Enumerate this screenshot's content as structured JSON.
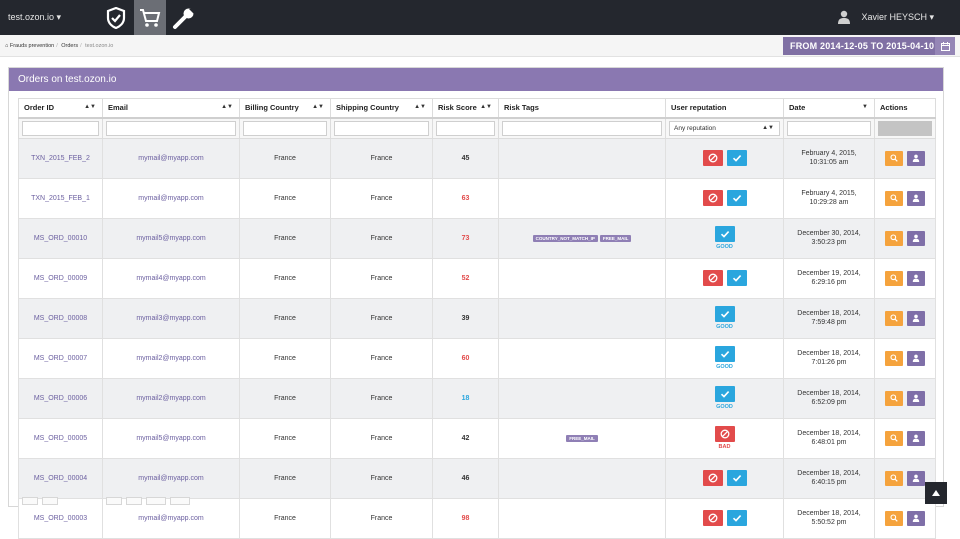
{
  "topbar": {
    "site": "test.ozon.io ▾",
    "user": "Xavier HEYSCH ▾",
    "icons": [
      "shield-check-icon",
      "cart-icon",
      "wrench-icon"
    ]
  },
  "breadcrumb": {
    "items": [
      "Frauds prevention",
      "Orders",
      "test.ozon.io"
    ]
  },
  "daterange": {
    "label": "FROM 2014-12-05 TO 2015-04-10"
  },
  "panel": {
    "title": "Orders on test.ozon.io"
  },
  "table": {
    "headers": [
      "Order ID",
      "Email",
      "Billing Country",
      "Shipping Country",
      "Risk Score",
      "Risk Tags",
      "User reputation",
      "Date",
      "Actions"
    ],
    "reputation_filter": "Any reputation",
    "rows": [
      {
        "id": "TXN_2015_FEB_2",
        "email": "mymail@myapp.com",
        "billing": "France",
        "shipping": "France",
        "score": "45",
        "score_color": "#333333",
        "tags": [],
        "rep": "both",
        "rep_label": "",
        "date1": "February 4, 2015,",
        "date2": "10:31:05 am"
      },
      {
        "id": "TXN_2015_FEB_1",
        "email": "mymail@myapp.com",
        "billing": "France",
        "shipping": "France",
        "score": "63",
        "score_color": "#e24b4b",
        "tags": [],
        "rep": "both",
        "rep_label": "",
        "date1": "February 4, 2015,",
        "date2": "10:29:28 am"
      },
      {
        "id": "MS_ORD_00010",
        "email": "mymail5@myapp.com",
        "billing": "France",
        "shipping": "France",
        "score": "73",
        "score_color": "#e24b4b",
        "tags": [
          "COUNTRY_NOT_MATCH_IP",
          "FREE_MAIL"
        ],
        "rep": "good",
        "rep_label": "GOOD",
        "date1": "December 30, 2014,",
        "date2": "3:50:23 pm"
      },
      {
        "id": "MS_ORD_00009",
        "email": "mymail4@myapp.com",
        "billing": "France",
        "shipping": "France",
        "score": "52",
        "score_color": "#e24b4b",
        "tags": [],
        "rep": "both",
        "rep_label": "",
        "date1": "December 19, 2014,",
        "date2": "6:29:16 pm"
      },
      {
        "id": "MS_ORD_00008",
        "email": "mymail3@myapp.com",
        "billing": "France",
        "shipping": "France",
        "score": "39",
        "score_color": "#333333",
        "tags": [],
        "rep": "good",
        "rep_label": "GOOD",
        "date1": "December 18, 2014,",
        "date2": "7:59:48 pm"
      },
      {
        "id": "MS_ORD_00007",
        "email": "mymail2@myapp.com",
        "billing": "France",
        "shipping": "France",
        "score": "60",
        "score_color": "#e24b4b",
        "tags": [],
        "rep": "good",
        "rep_label": "GOOD",
        "date1": "December 18, 2014,",
        "date2": "7:01:26 pm"
      },
      {
        "id": "MS_ORD_00006",
        "email": "mymail2@myapp.com",
        "billing": "France",
        "shipping": "France",
        "score": "18",
        "score_color": "#2aa6de",
        "tags": [],
        "rep": "good",
        "rep_label": "GOOD",
        "date1": "December 18, 2014,",
        "date2": "6:52:09 pm"
      },
      {
        "id": "MS_ORD_00005",
        "email": "mymail5@myapp.com",
        "billing": "France",
        "shipping": "France",
        "score": "42",
        "score_color": "#333333",
        "tags": [
          "FREE_MAIL"
        ],
        "rep": "bad",
        "rep_label": "BAD",
        "date1": "December 18, 2014,",
        "date2": "6:48:01 pm"
      },
      {
        "id": "MS_ORD_00004",
        "email": "mymail@myapp.com",
        "billing": "France",
        "shipping": "France",
        "score": "46",
        "score_color": "#333333",
        "tags": [],
        "rep": "both",
        "rep_label": "",
        "date1": "December 18, 2014,",
        "date2": "6:40:15 pm"
      },
      {
        "id": "MS_ORD_00003",
        "email": "mymail@myapp.com",
        "billing": "France",
        "shipping": "France",
        "score": "98",
        "score_color": "#e24b4b",
        "tags": [],
        "rep": "both",
        "rep_label": "",
        "date1": "December 18, 2014,",
        "date2": "5:50:52 pm"
      }
    ]
  },
  "colors": {
    "topbar": "#24272e",
    "accent": "#8a78b1",
    "danger": "#e24b4b",
    "info": "#2aa6de",
    "warning": "#f5a33d"
  }
}
